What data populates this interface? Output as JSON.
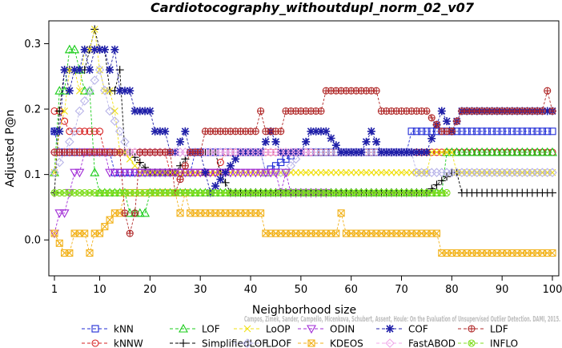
{
  "chart_data": {
    "type": "line",
    "title": "Cardiotocography_withoutdupl_norm_02_v07",
    "xlabel": "Neighborhood size",
    "ylabel": "Adjusted P@n",
    "xlim": [
      1,
      100
    ],
    "ylim": [
      -0.05,
      0.33
    ],
    "x_ticks": [
      1,
      10,
      20,
      30,
      40,
      50,
      60,
      70,
      80,
      90,
      100
    ],
    "y_ticks": [
      0.0,
      0.1,
      0.2,
      0.3
    ],
    "y_tick_labels": [
      "0.0",
      "0.1",
      "0.2",
      "0.3"
    ],
    "grid": false,
    "legend_position": "bottom",
    "credit": "Campos, Zimek, Sander, Campello, Micenkova, Schubert, Assent, Houle: On the Evaluation of Unsupervised Outlier Detection. DAMI, 2015.",
    "series": [
      {
        "name": "kNN",
        "color": "#1f2bd6",
        "marker": "square",
        "points": [
          [
            1,
            0.166
          ],
          [
            2,
            0.134
          ],
          [
            5,
            0.134
          ],
          [
            10,
            0.134
          ],
          [
            12,
            0.134
          ],
          [
            13,
            0.103
          ],
          [
            20,
            0.103
          ],
          [
            28,
            0.103
          ],
          [
            29,
            0.134
          ],
          [
            42,
            0.134
          ],
          [
            43,
            0.103
          ],
          [
            49,
            0.134
          ],
          [
            60,
            0.134
          ],
          [
            71,
            0.134
          ],
          [
            72,
            0.166
          ],
          [
            88,
            0.166
          ],
          [
            100,
            0.166
          ]
        ]
      },
      {
        "name": "kNNW",
        "color": "#d62020",
        "marker": "circle",
        "points": [
          [
            1,
            0.197
          ],
          [
            2,
            0.197
          ],
          [
            4,
            0.166
          ],
          [
            8,
            0.166
          ],
          [
            10,
            0.166
          ],
          [
            11,
            0.134
          ],
          [
            15,
            0.134
          ],
          [
            20,
            0.134
          ],
          [
            23,
            0.134
          ],
          [
            24,
            0.103
          ],
          [
            33,
            0.103
          ],
          [
            35,
            0.134
          ],
          [
            44,
            0.134
          ],
          [
            45,
            0.134
          ],
          [
            50,
            0.134
          ],
          [
            55,
            0.134
          ],
          [
            62,
            0.134
          ],
          [
            70,
            0.134
          ],
          [
            75,
            0.134
          ],
          [
            80,
            0.134
          ],
          [
            100,
            0.134
          ]
        ]
      },
      {
        "name": "LOF",
        "color": "#18cc18",
        "marker": "triangle-up",
        "points": [
          [
            1,
            0.103
          ],
          [
            2,
            0.228
          ],
          [
            3,
            0.228
          ],
          [
            4,
            0.291
          ],
          [
            5,
            0.291
          ],
          [
            6,
            0.26
          ],
          [
            7,
            0.228
          ],
          [
            8,
            0.228
          ],
          [
            9,
            0.103
          ],
          [
            10,
            0.072
          ],
          [
            15,
            0.072
          ],
          [
            16,
            0.041
          ],
          [
            17,
            0.041
          ],
          [
            19,
            0.041
          ],
          [
            20,
            0.072
          ],
          [
            35,
            0.072
          ],
          [
            50,
            0.072
          ],
          [
            60,
            0.072
          ],
          [
            70,
            0.072
          ],
          [
            78,
            0.072
          ],
          [
            79,
            0.134
          ],
          [
            85,
            0.134
          ],
          [
            100,
            0.134
          ]
        ]
      },
      {
        "name": "SimplifiedLOF",
        "color": "#000000",
        "marker": "plus",
        "points": [
          [
            1,
            0.072
          ],
          [
            2,
            0.197
          ],
          [
            3,
            0.26
          ],
          [
            4,
            0.26
          ],
          [
            5,
            0.26
          ],
          [
            6,
            0.26
          ],
          [
            7,
            0.26
          ],
          [
            8,
            0.291
          ],
          [
            9,
            0.322
          ],
          [
            10,
            0.291
          ],
          [
            11,
            0.291
          ],
          [
            12,
            0.228
          ],
          [
            13,
            0.228
          ],
          [
            14,
            0.26
          ],
          [
            15,
            0.134
          ],
          [
            16,
            0.134
          ],
          [
            20,
            0.103
          ],
          [
            25,
            0.103
          ],
          [
            28,
            0.134
          ],
          [
            33,
            0.134
          ],
          [
            34,
            0.103
          ],
          [
            36,
            0.072
          ],
          [
            45,
            0.072
          ],
          [
            55,
            0.072
          ],
          [
            65,
            0.072
          ],
          [
            75,
            0.072
          ],
          [
            80,
            0.103
          ],
          [
            81,
            0.103
          ],
          [
            82,
            0.072
          ],
          [
            100,
            0.072
          ]
        ]
      },
      {
        "name": "LoOP",
        "color": "#f0e010",
        "marker": "x",
        "points": [
          [
            1,
            0.103
          ],
          [
            2,
            0.166
          ],
          [
            3,
            0.197
          ],
          [
            4,
            0.26
          ],
          [
            5,
            0.26
          ],
          [
            6,
            0.228
          ],
          [
            7,
            0.291
          ],
          [
            8,
            0.291
          ],
          [
            9,
            0.322
          ],
          [
            10,
            0.26
          ],
          [
            11,
            0.228
          ],
          [
            12,
            0.228
          ],
          [
            13,
            0.197
          ],
          [
            14,
            0.134
          ],
          [
            15,
            0.134
          ],
          [
            18,
            0.103
          ],
          [
            30,
            0.103
          ],
          [
            50,
            0.103
          ],
          [
            60,
            0.103
          ],
          [
            75,
            0.103
          ],
          [
            76,
            0.134
          ],
          [
            80,
            0.134
          ],
          [
            81,
            0.103
          ],
          [
            100,
            0.103
          ]
        ]
      },
      {
        "name": "LDOF",
        "color": "#b7b3e8",
        "marker": "diamond",
        "points": [
          [
            1,
            0.103
          ],
          [
            3,
            0.134
          ],
          [
            5,
            0.166
          ],
          [
            6,
            0.197
          ],
          [
            8,
            0.228
          ],
          [
            10,
            0.26
          ],
          [
            12,
            0.197
          ],
          [
            14,
            0.166
          ],
          [
            16,
            0.134
          ],
          [
            20,
            0.134
          ],
          [
            30,
            0.134
          ],
          [
            40,
            0.134
          ],
          [
            42,
            0.134
          ],
          [
            43,
            0.103
          ],
          [
            47,
            0.103
          ],
          [
            50,
            0.134
          ],
          [
            60,
            0.134
          ],
          [
            72,
            0.134
          ],
          [
            73,
            0.103
          ],
          [
            100,
            0.103
          ]
        ]
      },
      {
        "name": "ODIN",
        "color": "#a12bd6",
        "marker": "triangle-down",
        "points": [
          [
            1,
            0.01
          ],
          [
            2,
            0.041
          ],
          [
            3,
            0.041
          ],
          [
            4,
            0.072
          ],
          [
            5,
            0.103
          ],
          [
            6,
            0.103
          ],
          [
            7,
            0.134
          ],
          [
            8,
            0.134
          ],
          [
            9,
            0.134
          ],
          [
            10,
            0.134
          ],
          [
            11,
            0.134
          ],
          [
            12,
            0.103
          ],
          [
            14,
            0.103
          ],
          [
            16,
            0.103
          ],
          [
            20,
            0.103
          ],
          [
            28,
            0.103
          ],
          [
            30,
            0.103
          ],
          [
            33,
            0.103
          ],
          [
            34,
            0.103
          ],
          [
            36,
            0.103
          ],
          [
            38,
            0.103
          ],
          [
            40,
            0.103
          ],
          [
            45,
            0.103
          ],
          [
            46,
            0.072
          ],
          [
            47,
            0.103
          ],
          [
            48,
            0.072
          ],
          [
            50,
            0.072
          ],
          [
            52,
            0.072
          ],
          [
            55,
            0.072
          ]
        ]
      },
      {
        "name": "KDEOS",
        "color": "#f2b21b",
        "marker": "square-x",
        "points": [
          [
            1,
            0.01
          ],
          [
            3,
            -0.02
          ],
          [
            4,
            -0.02
          ],
          [
            5,
            0.01
          ],
          [
            7,
            0.01
          ],
          [
            8,
            -0.02
          ],
          [
            9,
            0.01
          ],
          [
            10,
            0.01
          ],
          [
            13,
            0.041
          ],
          [
            14,
            0.041
          ],
          [
            15,
            0.072
          ],
          [
            17,
            0.072
          ],
          [
            25,
            0.072
          ],
          [
            26,
            0.041
          ],
          [
            27,
            0.072
          ],
          [
            28,
            0.041
          ],
          [
            42,
            0.041
          ],
          [
            43,
            0.01
          ],
          [
            55,
            0.01
          ],
          [
            57,
            0.01
          ],
          [
            58,
            0.041
          ],
          [
            59,
            0.01
          ],
          [
            77,
            0.01
          ],
          [
            78,
            -0.02
          ],
          [
            100,
            -0.02
          ]
        ]
      },
      {
        "name": "COF",
        "color": "#1f1fa8",
        "marker": "asterisk",
        "points": [
          [
            1,
            0.166
          ],
          [
            2,
            0.166
          ],
          [
            3,
            0.26
          ],
          [
            4,
            0.228
          ],
          [
            5,
            0.26
          ],
          [
            6,
            0.26
          ],
          [
            7,
            0.291
          ],
          [
            8,
            0.26
          ],
          [
            9,
            0.291
          ],
          [
            10,
            0.291
          ],
          [
            11,
            0.291
          ],
          [
            12,
            0.26
          ],
          [
            13,
            0.291
          ],
          [
            14,
            0.228
          ],
          [
            15,
            0.228
          ],
          [
            16,
            0.228
          ],
          [
            17,
            0.197
          ],
          [
            18,
            0.197
          ],
          [
            19,
            0.197
          ],
          [
            20,
            0.197
          ],
          [
            21,
            0.166
          ],
          [
            22,
            0.166
          ],
          [
            23,
            0.166
          ],
          [
            24,
            0.134
          ],
          [
            25,
            0.134
          ],
          [
            27,
            0.166
          ],
          [
            28,
            0.134
          ],
          [
            30,
            0.134
          ],
          [
            32,
            0.072
          ],
          [
            35,
            0.103
          ],
          [
            38,
            0.134
          ],
          [
            40,
            0.134
          ],
          [
            42,
            0.134
          ],
          [
            44,
            0.166
          ],
          [
            46,
            0.134
          ],
          [
            48,
            0.134
          ],
          [
            50,
            0.134
          ],
          [
            52,
            0.166
          ],
          [
            55,
            0.166
          ],
          [
            58,
            0.134
          ],
          [
            62,
            0.134
          ],
          [
            64,
            0.166
          ],
          [
            66,
            0.134
          ],
          [
            70,
            0.134
          ],
          [
            75,
            0.134
          ],
          [
            78,
            0.197
          ],
          [
            80,
            0.166
          ],
          [
            82,
            0.197
          ],
          [
            85,
            0.197
          ],
          [
            90,
            0.197
          ],
          [
            95,
            0.197
          ],
          [
            100,
            0.197
          ]
        ]
      },
      {
        "name": "FastABOD",
        "color": "#f0a8e8",
        "marker": "diamond",
        "points": [
          [
            1,
            0.134
          ],
          [
            3,
            0.134
          ],
          [
            5,
            0.134
          ],
          [
            7,
            0.134
          ],
          [
            9,
            0.134
          ],
          [
            12,
            0.134
          ],
          [
            20,
            0.134
          ],
          [
            30,
            0.134
          ],
          [
            40,
            0.134
          ],
          [
            50,
            0.134
          ],
          [
            52,
            0.134
          ]
        ]
      },
      {
        "name": "LDF",
        "color": "#b02828",
        "marker": "circle-plus",
        "points": [
          [
            1,
            0.134
          ],
          [
            5,
            0.134
          ],
          [
            10,
            0.134
          ],
          [
            14,
            0.134
          ],
          [
            15,
            0.041
          ],
          [
            16,
            0.01
          ],
          [
            17,
            0.041
          ],
          [
            18,
            0.134
          ],
          [
            20,
            0.134
          ],
          [
            24,
            0.134
          ],
          [
            25,
            0.072
          ],
          [
            28,
            0.134
          ],
          [
            30,
            0.134
          ],
          [
            31,
            0.166
          ],
          [
            40,
            0.166
          ],
          [
            41,
            0.166
          ],
          [
            42,
            0.197
          ],
          [
            43,
            0.166
          ],
          [
            46,
            0.166
          ],
          [
            47,
            0.197
          ],
          [
            54,
            0.197
          ],
          [
            55,
            0.228
          ],
          [
            65,
            0.228
          ],
          [
            66,
            0.197
          ],
          [
            75,
            0.197
          ],
          [
            78,
            0.166
          ],
          [
            80,
            0.166
          ],
          [
            82,
            0.197
          ],
          [
            98,
            0.197
          ],
          [
            99,
            0.228
          ],
          [
            100,
            0.197
          ]
        ]
      },
      {
        "name": "INFLO",
        "color": "#80dd20",
        "marker": "circle-x",
        "points": [
          [
            1,
            0.072
          ],
          [
            2,
            0.072
          ],
          [
            5,
            0.072
          ],
          [
            10,
            0.072
          ],
          [
            20,
            0.072
          ],
          [
            30,
            0.072
          ],
          [
            35,
            0.072
          ],
          [
            40,
            0.072
          ],
          [
            45,
            0.072
          ],
          [
            50,
            0.072
          ],
          [
            55,
            0.072
          ],
          [
            60,
            0.072
          ],
          [
            70,
            0.072
          ],
          [
            79,
            0.072
          ]
        ]
      }
    ]
  }
}
